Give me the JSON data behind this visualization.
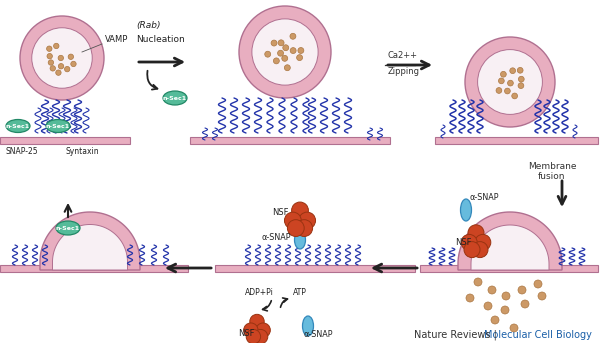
{
  "fig_width": 6.0,
  "fig_height": 3.43,
  "dpi": 100,
  "bg_color": "#ffffff",
  "footer_text1": "Nature Reviews | ",
  "footer_text2": "Molecular Cell Biology",
  "footer_color1": "#333333",
  "footer_color2": "#1a5fa8",
  "footer_fontsize": 7.0,
  "vesicle_ring_fill": "#e8aec0",
  "vesicle_ring_edge": "#b07090",
  "vesicle_inner_fill": "#f8f0f4",
  "vesicle_inner_edge": "#b07090",
  "membrane_fill": "#e8aec0",
  "membrane_edge": "#b07090",
  "snare_color": "#2233aa",
  "nsec1_fill": "#55bb99",
  "nsec1_edge": "#228866",
  "nsf_fill": "#cc4422",
  "nsf_edge": "#993311",
  "asnap_fill": "#66bbdd",
  "asnap_edge": "#3388bb",
  "dot_fill": "#cc9966",
  "dot_edge": "#aa7744",
  "label_vamp": "VAMP",
  "label_rab": "(Rab)",
  "label_nucleation": "Nucleation",
  "label_ca2": "Ca2+",
  "label_zipping": "Zipping",
  "label_membrane_fusion": "Membrane\nfusion",
  "label_nsec1": "n-Sec1",
  "label_nsf": "NSF",
  "label_asnap": "α-SNAP",
  "label_snap25": "SNAP-25",
  "label_syntaxin": "Syntaxin",
  "label_adp": "ADP+Pi",
  "label_atp": "ATP",
  "arrow_color": "#222222"
}
